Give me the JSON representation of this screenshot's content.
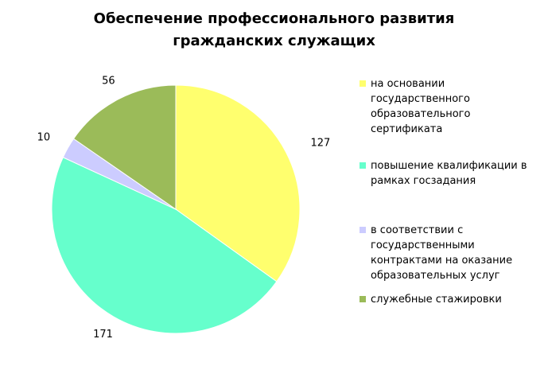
{
  "chart_data": {
    "type": "pie",
    "title_lines": [
      "Обеспечение профессионального развития",
      "гражданских служащих"
    ],
    "categories": [
      "на основании государственного образовательного сертификата",
      "повышение квалификации в рамках госзадания",
      "в соответствии с государственными контрактами на оказание образовательных услуг",
      "служебные стажировки"
    ],
    "values": [
      127,
      171,
      10,
      56
    ],
    "colors": [
      "#FFFF6E",
      "#66FFCC",
      "#CCCCFF",
      "#9BBB59"
    ],
    "data_labels": [
      "127",
      "171",
      "10",
      "56"
    ],
    "legend_position": "right"
  },
  "legend": {
    "items": [
      {
        "label": "на основании государственного образовательного сертификата",
        "color": "#FFFF6E"
      },
      {
        "label": "повышение квалификации в рамках госзадания",
        "color": "#66FFCC"
      },
      {
        "label": "в соответствии с государственными контрактами на оказание образовательных услуг",
        "color": "#CCCCFF"
      },
      {
        "label": "служебные стажировки",
        "color": "#9BBB59"
      }
    ]
  }
}
